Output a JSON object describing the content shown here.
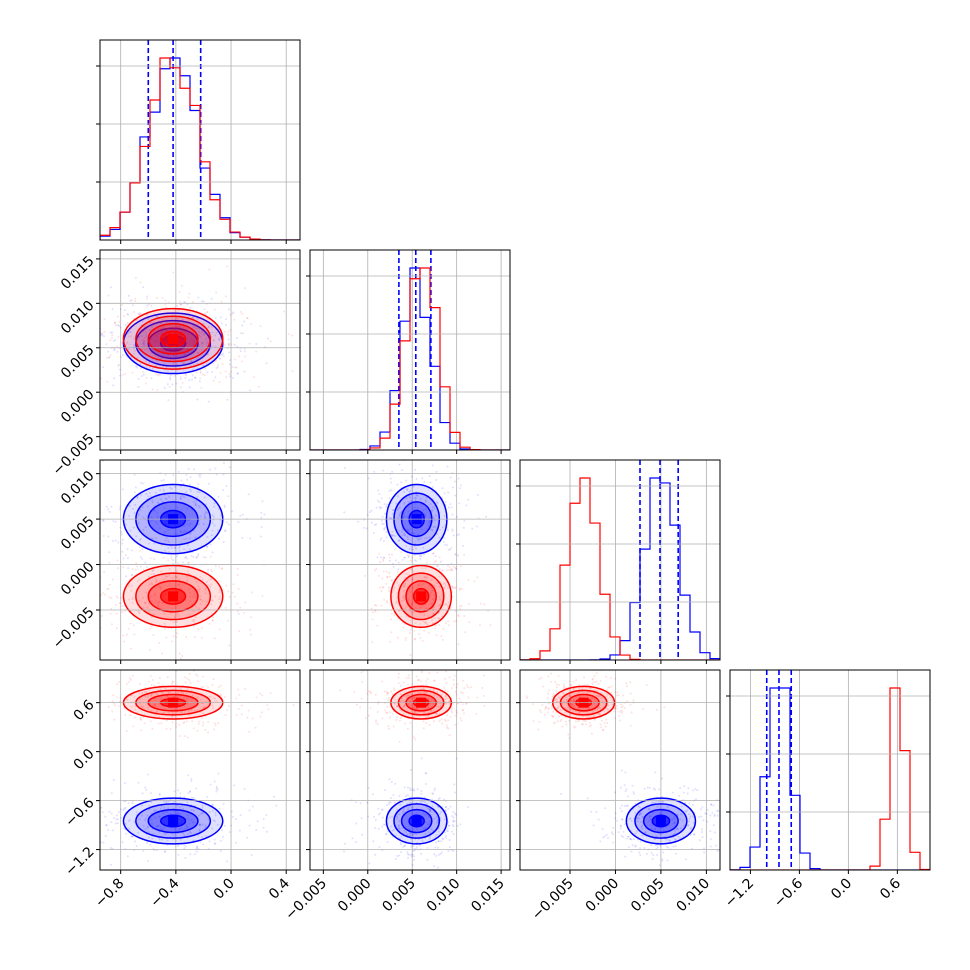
{
  "colors": {
    "series_a": "#0000ff",
    "series_b": "#ff0000",
    "grid": "#b0b0b0"
  },
  "chart_data": {
    "type": "corner",
    "title": "",
    "grid": true,
    "parameters": [
      {
        "xlim": [
          -0.95,
          0.5
        ],
        "ticks": [
          -0.8,
          -0.4,
          0.0,
          0.4
        ],
        "tick_labels": [
          "−0.8",
          "−0.4",
          "0.0",
          "0.4"
        ]
      },
      {
        "xlim": [
          -0.0065,
          0.016
        ],
        "ticks": [
          -0.005,
          0.0,
          0.005,
          0.01,
          0.015
        ],
        "tick_labels": [
          "−0.005",
          "0.000",
          "0.005",
          "0.010",
          "0.015"
        ]
      },
      {
        "xlim": [
          -0.0105,
          0.0115
        ],
        "ticks": [
          -0.005,
          0.0,
          0.005,
          0.01
        ],
        "tick_labels": [
          "−0.005",
          "0.000",
          "0.005",
          "0.010"
        ]
      },
      {
        "xlim": [
          -1.45,
          1.0
        ],
        "ticks": [
          -1.2,
          -0.6,
          0.0,
          0.6
        ],
        "tick_labels": [
          "−1.2",
          "−0.6",
          "0.0",
          "0.6"
        ]
      }
    ],
    "series": [
      {
        "color": "#0000ff",
        "mean": [
          -0.42,
          0.0055,
          0.005,
          -0.85
        ],
        "std": [
          0.18,
          0.0017,
          0.0019,
          0.14
        ],
        "quantiles": [
          [
            -0.6,
            -0.42,
            -0.22
          ],
          [
            0.0035,
            0.0054,
            0.0071
          ],
          [
            0.0027,
            0.0049,
            0.0069
          ],
          [
            -1.0,
            -0.85,
            -0.7
          ]
        ]
      },
      {
        "color": "#ff0000",
        "mean": [
          -0.42,
          0.006,
          -0.0035,
          0.6
        ],
        "std": [
          0.18,
          0.0017,
          0.0017,
          0.1
        ],
        "quantiles": null
      }
    ]
  }
}
